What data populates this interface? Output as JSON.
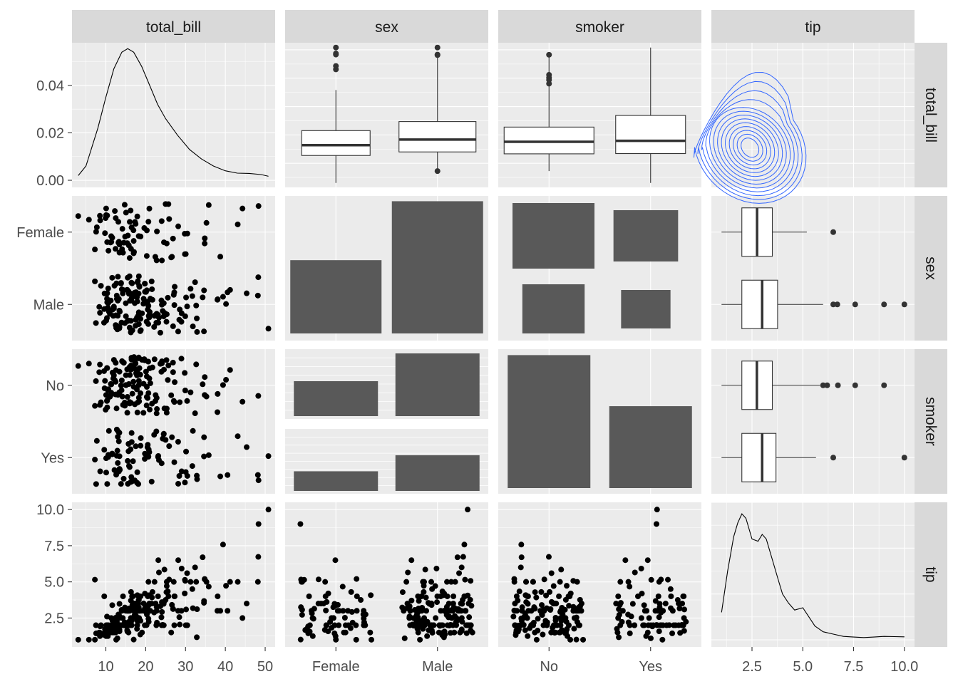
{
  "variables": [
    "total_bill",
    "sex",
    "smoker",
    "tip"
  ],
  "colors": {
    "panel_bg": "#ebebeb",
    "grid": "#ffffff",
    "strip_bg": "#d9d9d9",
    "strip_text": "#1a1a1a",
    "axis_text": "#4d4d4d",
    "bar_fill": "#595959",
    "point": "#000000",
    "contour": "#3366ff"
  },
  "chart_data": {
    "type": "scatter",
    "subtype": "pairs-matrix",
    "grid": true,
    "columns": [
      "total_bill",
      "sex",
      "smoker",
      "tip"
    ],
    "rows": [
      "total_bill",
      "sex",
      "smoker",
      "tip"
    ],
    "axes": {
      "total_bill": {
        "range": [
          1.5,
          52.5
        ],
        "ticks": [
          10,
          20,
          30,
          40,
          50
        ],
        "tick_labels": [
          "10",
          "20",
          "30",
          "40",
          "50"
        ]
      },
      "tip": {
        "range": [
          0.5,
          10.5
        ],
        "ticks": [
          2.5,
          5.0,
          7.5,
          10.0
        ],
        "tick_labels": [
          "2.5",
          "5.0",
          "7.5",
          "10.0"
        ]
      },
      "sex": {
        "levels": [
          "Female",
          "Male"
        ]
      },
      "smoker": {
        "levels": [
          "No",
          "Yes"
        ]
      },
      "density_total_bill_y": {
        "range": [
          -0.003,
          0.058
        ],
        "ticks": [
          0,
          0.02,
          0.04
        ],
        "tick_labels": [
          "0.00",
          "0.02",
          "0.04"
        ]
      }
    },
    "category_counts": {
      "sex": {
        "Female": 87,
        "Male": 157
      },
      "smoker": {
        "No": 151,
        "Yes": 93
      },
      "sex_by_smoker": {
        "No": {
          "Female": 54,
          "Male": 97
        },
        "Yes": {
          "Female": 33,
          "Male": 60
        }
      }
    },
    "density_total_bill": {
      "x": [
        3.07,
        5,
        8,
        10,
        12,
        14,
        15.5,
        17,
        19,
        21,
        23,
        25,
        28,
        31,
        34,
        37,
        40,
        43,
        46,
        49,
        50.81
      ],
      "y": [
        0.002,
        0.006,
        0.022,
        0.035,
        0.047,
        0.054,
        0.0555,
        0.054,
        0.048,
        0.04,
        0.032,
        0.026,
        0.019,
        0.013,
        0.009,
        0.006,
        0.004,
        0.003,
        0.0029,
        0.0024,
        0.0017
      ]
    },
    "density_tip": {
      "x": [
        1.0,
        1.3,
        1.6,
        1.8,
        2.0,
        2.2,
        2.5,
        2.8,
        3.0,
        3.2,
        3.5,
        3.8,
        4.0,
        4.3,
        4.6,
        5.0,
        5.3,
        5.6,
        6.0,
        6.5,
        7.0,
        7.5,
        8.0,
        8.5,
        9.0,
        9.5,
        10.0
      ],
      "y": [
        0.12,
        0.3,
        0.45,
        0.51,
        0.55,
        0.53,
        0.44,
        0.43,
        0.46,
        0.44,
        0.35,
        0.26,
        0.2,
        0.16,
        0.13,
        0.14,
        0.1,
        0.06,
        0.035,
        0.025,
        0.015,
        0.012,
        0.01,
        0.012,
        0.015,
        0.014,
        0.013
      ]
    },
    "box_total_bill_by_sex": {
      "Female": {
        "lower": 3.07,
        "q1": 12.75,
        "median": 16.4,
        "q3": 21.52,
        "upper": 35.83,
        "outliers": [
          43.11,
          44.3,
          48.33,
          48.72,
          50.81
        ]
      },
      "Male": {
        "lower": 7.25,
        "q1": 14.0,
        "median": 18.35,
        "q3": 24.71,
        "upper": 48.27,
        "outliers": [
          50.81,
          48.17,
          48.33,
          7.25
        ]
      }
    },
    "box_total_bill_by_smoker": {
      "No": {
        "lower": 7.25,
        "q1": 13.33,
        "median": 17.59,
        "q3": 22.76,
        "upper": 48.27,
        "outliers": [
          48.27,
          38.07,
          39.4,
          41.19,
          40.17
        ]
      },
      "Yes": {
        "lower": 3.07,
        "q1": 13.42,
        "median": 17.92,
        "q3": 26.86,
        "upper": 50.81,
        "outliers": []
      }
    },
    "box_tip_by_sex": {
      "Female": {
        "lower": 1.0,
        "q1": 2.0,
        "median": 2.75,
        "q3": 3.5,
        "upper": 5.2,
        "outliers": [
          6.5
        ]
      },
      "Male": {
        "lower": 1.0,
        "q1": 2.0,
        "median": 3.0,
        "q3": 3.76,
        "upper": 6.0,
        "outliers": [
          6.5,
          6.7,
          7.58,
          9.0,
          10.0
        ]
      }
    },
    "box_tip_by_smoker": {
      "No": {
        "lower": 1.0,
        "q1": 2.0,
        "median": 2.74,
        "q3": 3.5,
        "upper": 5.85,
        "outliers": [
          6.0,
          6.2,
          6.73,
          7.58,
          9.0
        ]
      },
      "Yes": {
        "lower": 1.0,
        "q1": 2.0,
        "median": 3.0,
        "q3": 3.68,
        "upper": 5.65,
        "outliers": [
          6.5,
          10.0
        ]
      }
    },
    "scatter_total_bill_tip": {
      "x": [
        16.99,
        10.34,
        21.01,
        23.68,
        24.59,
        25.29,
        8.77,
        26.88,
        15.04,
        14.78,
        10.27,
        35.26,
        15.42,
        18.43,
        14.83,
        21.58,
        10.33,
        16.29,
        16.97,
        20.65,
        17.92,
        20.29,
        15.77,
        39.42,
        19.82,
        17.81,
        13.37,
        12.69,
        21.7,
        19.65,
        9.55,
        18.35,
        15.06,
        20.69,
        17.78,
        24.06,
        16.31,
        16.93,
        18.69,
        31.27,
        16.04,
        17.46,
        13.94,
        9.68,
        30.4,
        18.29,
        22.23,
        32.4,
        28.55,
        18.04,
        12.54,
        10.29,
        34.81,
        9.94,
        25.56,
        19.49,
        38.01,
        26.41,
        11.24,
        48.27,
        20.29,
        13.81,
        11.02,
        18.29,
        17.59,
        20.08,
        16.45,
        3.07,
        20.23,
        15.01,
        12.02,
        17.07,
        26.86,
        25.28,
        14.73,
        10.51,
        17.92,
        27.2,
        22.76,
        17.29,
        19.44,
        16.66,
        10.07,
        32.68,
        15.98,
        34.83,
        13.03,
        18.28,
        24.71,
        21.16,
        28.97,
        22.49,
        5.75,
        16.32,
        22.75,
        40.17,
        27.28,
        12.03,
        21.01,
        12.46,
        11.35,
        15.38,
        44.3,
        22.42,
        20.92,
        15.36,
        20.49,
        25.21,
        18.24,
        14.31,
        14.0,
        7.25,
        38.07,
        23.95,
        25.71,
        17.31,
        29.93,
        10.65,
        12.43,
        24.08,
        11.69,
        13.42,
        14.26,
        15.95,
        12.48,
        29.8,
        8.52,
        14.52,
        11.38,
        22.82,
        19.08,
        20.27,
        11.17,
        12.26,
        18.26,
        8.51,
        10.33,
        14.15,
        16.0,
        13.16,
        17.47,
        34.3,
        41.19,
        27.05,
        16.43,
        8.35,
        18.64,
        11.87,
        9.78,
        7.51,
        14.07,
        13.13,
        17.26,
        24.55,
        19.77,
        29.85,
        48.17,
        25.0,
        13.39,
        16.49,
        21.5,
        12.66,
        16.21,
        13.81,
        17.51,
        24.52,
        20.76,
        31.71,
        10.59,
        10.63,
        50.81,
        15.81,
        7.25,
        31.85,
        16.82,
        32.9,
        17.89,
        14.48,
        9.6,
        34.63,
        34.65,
        23.33,
        45.35,
        23.17,
        40.55,
        20.69,
        20.9,
        30.46,
        18.15,
        23.1,
        15.69,
        19.81,
        28.44,
        15.48,
        16.58,
        7.56,
        10.34,
        43.11,
        13.0,
        13.51,
        18.71,
        12.74,
        13.0,
        16.4,
        20.53,
        16.47,
        26.59,
        38.73,
        24.27,
        12.76,
        30.06,
        25.89,
        48.33,
        13.27,
        28.17,
        12.9,
        28.15,
        11.59,
        7.74,
        30.14,
        12.16,
        13.42,
        8.58,
        15.98,
        13.42,
        16.27,
        10.09,
        20.45,
        13.28,
        22.12,
        24.01,
        15.69,
        11.61,
        10.77,
        15.53,
        10.07,
        12.6,
        32.83,
        35.83,
        29.03,
        27.18,
        22.67,
        17.82,
        18.78
      ],
      "y": [
        1.01,
        1.66,
        3.5,
        3.31,
        3.61,
        4.71,
        2.0,
        3.12,
        1.96,
        3.23,
        1.71,
        5.0,
        1.57,
        3.0,
        3.02,
        3.92,
        1.67,
        3.71,
        3.5,
        3.35,
        4.08,
        2.75,
        2.23,
        7.58,
        3.18,
        2.34,
        2.0,
        2.0,
        4.3,
        3.0,
        1.45,
        2.5,
        3.0,
        2.45,
        3.27,
        3.6,
        2.0,
        3.07,
        2.31,
        5.0,
        2.24,
        2.54,
        3.06,
        1.32,
        5.6,
        3.0,
        5.0,
        6.0,
        2.05,
        3.0,
        2.5,
        2.6,
        5.2,
        1.56,
        4.34,
        3.51,
        3.0,
        1.5,
        1.76,
        6.73,
        3.21,
        2.0,
        1.98,
        3.76,
        2.64,
        3.15,
        2.47,
        1.0,
        2.01,
        2.09,
        1.97,
        3.0,
        3.14,
        5.0,
        2.2,
        1.25,
        3.08,
        4.0,
        3.0,
        2.71,
        3.0,
        3.4,
        1.83,
        5.0,
        2.03,
        5.17,
        2.0,
        4.0,
        5.85,
        3.0,
        3.0,
        3.5,
        1.0,
        4.3,
        3.25,
        4.73,
        4.0,
        1.5,
        3.0,
        1.5,
        2.5,
        3.0,
        2.5,
        3.48,
        4.08,
        1.64,
        4.06,
        4.29,
        3.76,
        4.0,
        3.0,
        1.0,
        4.0,
        2.55,
        4.0,
        3.5,
        5.07,
        1.5,
        1.8,
        2.92,
        2.31,
        1.68,
        2.5,
        2.0,
        2.52,
        4.2,
        1.48,
        2.0,
        2.0,
        2.18,
        1.5,
        2.83,
        1.5,
        2.0,
        3.25,
        1.25,
        2.0,
        2.0,
        2.0,
        2.75,
        3.5,
        6.7,
        5.0,
        5.0,
        2.3,
        1.5,
        1.36,
        1.63,
        1.73,
        2.0,
        2.5,
        2.0,
        2.74,
        2.0,
        2.0,
        5.14,
        5.0,
        3.75,
        2.61,
        2.0,
        3.5,
        2.5,
        2.0,
        2.0,
        3.0,
        3.48,
        2.24,
        4.5,
        1.61,
        2.0,
        10.0,
        3.16,
        5.15,
        3.18,
        4.0,
        3.11,
        2.0,
        2.0,
        4.0,
        3.55,
        3.68,
        5.65,
        3.5,
        6.5,
        3.0,
        5.0,
        3.5,
        2.0,
        3.5,
        4.0,
        1.5,
        4.19,
        2.56,
        2.02,
        4.0,
        1.44,
        2.0,
        5.0,
        2.0,
        2.0,
        4.0,
        2.01,
        2.0,
        2.5,
        4.0,
        3.23,
        3.41,
        3.0,
        2.03,
        2.23,
        2.0,
        5.16,
        9.0,
        2.5,
        6.5,
        1.1,
        3.0,
        1.5,
        1.44,
        3.09,
        2.2,
        3.48,
        1.92,
        3.0,
        1.58,
        2.5,
        2.0,
        3.0,
        2.72,
        2.88,
        2.0,
        3.0,
        3.39,
        1.47,
        3.0,
        1.25,
        1.0,
        1.17,
        4.67,
        5.92,
        2.0,
        2.0,
        1.75,
        3.0
      ]
    },
    "scatter_sex_flag": "Female,Male,Male,Male,Female,Male,Male,Male,Male,Male,Male,Female,Male,Male,Female,Male,Female,Male,Female,Male,Male,Female,Female,Male,Male,Male,Male,Male,Male,Female,Male,Male,Female,Female,Male,Male,Male,Female,Male,Male,Male,Male,Male,Male,Male,Male,Male,Male,Male,Male,Male,Male,Female,Female,Male,Male,Male,Female,Male,Male,Male,Male,Male,Male,Male,Male,Female,Female,Male,Male,Male,Female,Female,Female,Female,Male,Male,Male,Male,Male,Male,Male,Female,Male,Male,Female,Male,Male,Male,Male,Male,Male,Female,Female,Female,Male,Male,Male,Male,Male,Female,Female,Female,Female,Female,Male,Male,Male,Male,Female,Male,Female,Male,Male,Female,Female,Male,Female,Female,Female,Male,Female,Male,Male,Female,Female,Male,Female,Female,Female,Male,Female,Female,Female,Female,Female,Female,Female,Female,Female,Female,Male,Male,Male,Male,Male,Male,Male,Female,Male,Female,Female,Male,Male,Male,Female,Male,Female,Male,Male,Male,Male,Female,Male,Male,Male,Male,Male,Male,Male,Male,Male,Male,Male,Male,Male,Female,Male,Male,Male,Male,Male,Male,Male,Male,Male,Male,Female,Male,Male,Male,Male,Male,Male,Male,Female,Male,Female,Male,Male,Female,Male,Male,Male,Male,Male,Female,Female,Male,Male,Female,Female,Female,Male,Female,Male,Male,Male,Female,Male,Male,Male,Female,Female,Female,Male,Male,Male,Female,Male,Female,Male,Female,Male,Female,Female,Male,Male,Female,Male,Male,Male,Male,Male,Male,Male,Male,Female,Male,Female,Male,Male,Female"
  }
}
